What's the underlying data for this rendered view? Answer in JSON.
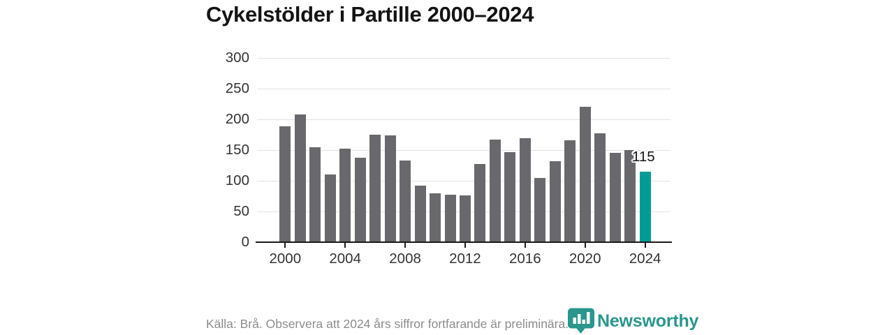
{
  "title": "Cykelstölder i Partille 2000–2024",
  "footer": {
    "source_note": "Källa: Brå. Observera att 2024 års siffror fortfarande är preliminära."
  },
  "branding": {
    "wordmark": "Newsworthy",
    "logo_icon": "newsworthy-banner-bar-chart-icon",
    "logo_color": "#2a968c"
  },
  "chart_data": {
    "type": "bar",
    "title": "Cykelstölder i Partille 2000–2024",
    "x": [
      2000,
      2001,
      2002,
      2003,
      2004,
      2005,
      2006,
      2007,
      2008,
      2009,
      2010,
      2011,
      2012,
      2013,
      2014,
      2015,
      2016,
      2017,
      2018,
      2019,
      2020,
      2021,
      2022,
      2023,
      2024
    ],
    "values": [
      189,
      208,
      154,
      110,
      152,
      137,
      175,
      174,
      133,
      92,
      79,
      77,
      76,
      127,
      167,
      146,
      169,
      104,
      132,
      166,
      221,
      177,
      145,
      150,
      115
    ],
    "highlight_x": 2024,
    "highlight_value_label": "115",
    "bar_color": "#69696d",
    "highlight_color": "#009c94",
    "ylim": [
      0,
      300
    ],
    "yticks": [
      0,
      50,
      100,
      150,
      200,
      250,
      300
    ],
    "xticks": [
      2000,
      2004,
      2008,
      2012,
      2016,
      2020,
      2024
    ],
    "grid": true,
    "legend": "none",
    "xlabel": "",
    "ylabel": ""
  }
}
